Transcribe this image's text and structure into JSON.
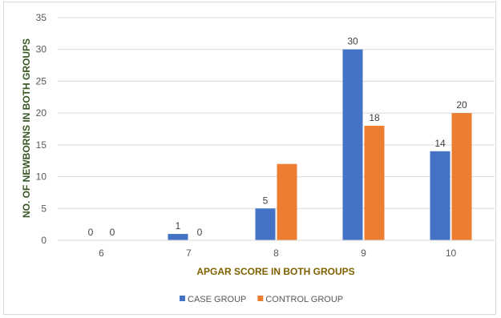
{
  "chart_data": {
    "type": "bar",
    "title": "",
    "xlabel": "APGAR SCORE IN BOTH GROUPS",
    "ylabel": "NO. OF NEWBORNS IN BOTH GROUPS",
    "categories": [
      "6",
      "7",
      "8",
      "9",
      "10"
    ],
    "series": [
      {
        "name": "CASE GROUP",
        "values": [
          0,
          1,
          5,
          30,
          14
        ],
        "color": "#4472c4"
      },
      {
        "name": "CONTROL GROUP",
        "values": [
          0,
          0,
          12,
          18,
          20
        ],
        "color": "#ed7d31"
      }
    ],
    "ylim": [
      0,
      35
    ],
    "yticks": [
      0,
      5,
      10,
      15,
      20,
      25,
      30,
      35
    ],
    "grid": true,
    "legend_position": "bottom",
    "data_labels_shown": [
      [
        true,
        true,
        true,
        true,
        true
      ],
      [
        true,
        true,
        false,
        true,
        true
      ]
    ]
  }
}
